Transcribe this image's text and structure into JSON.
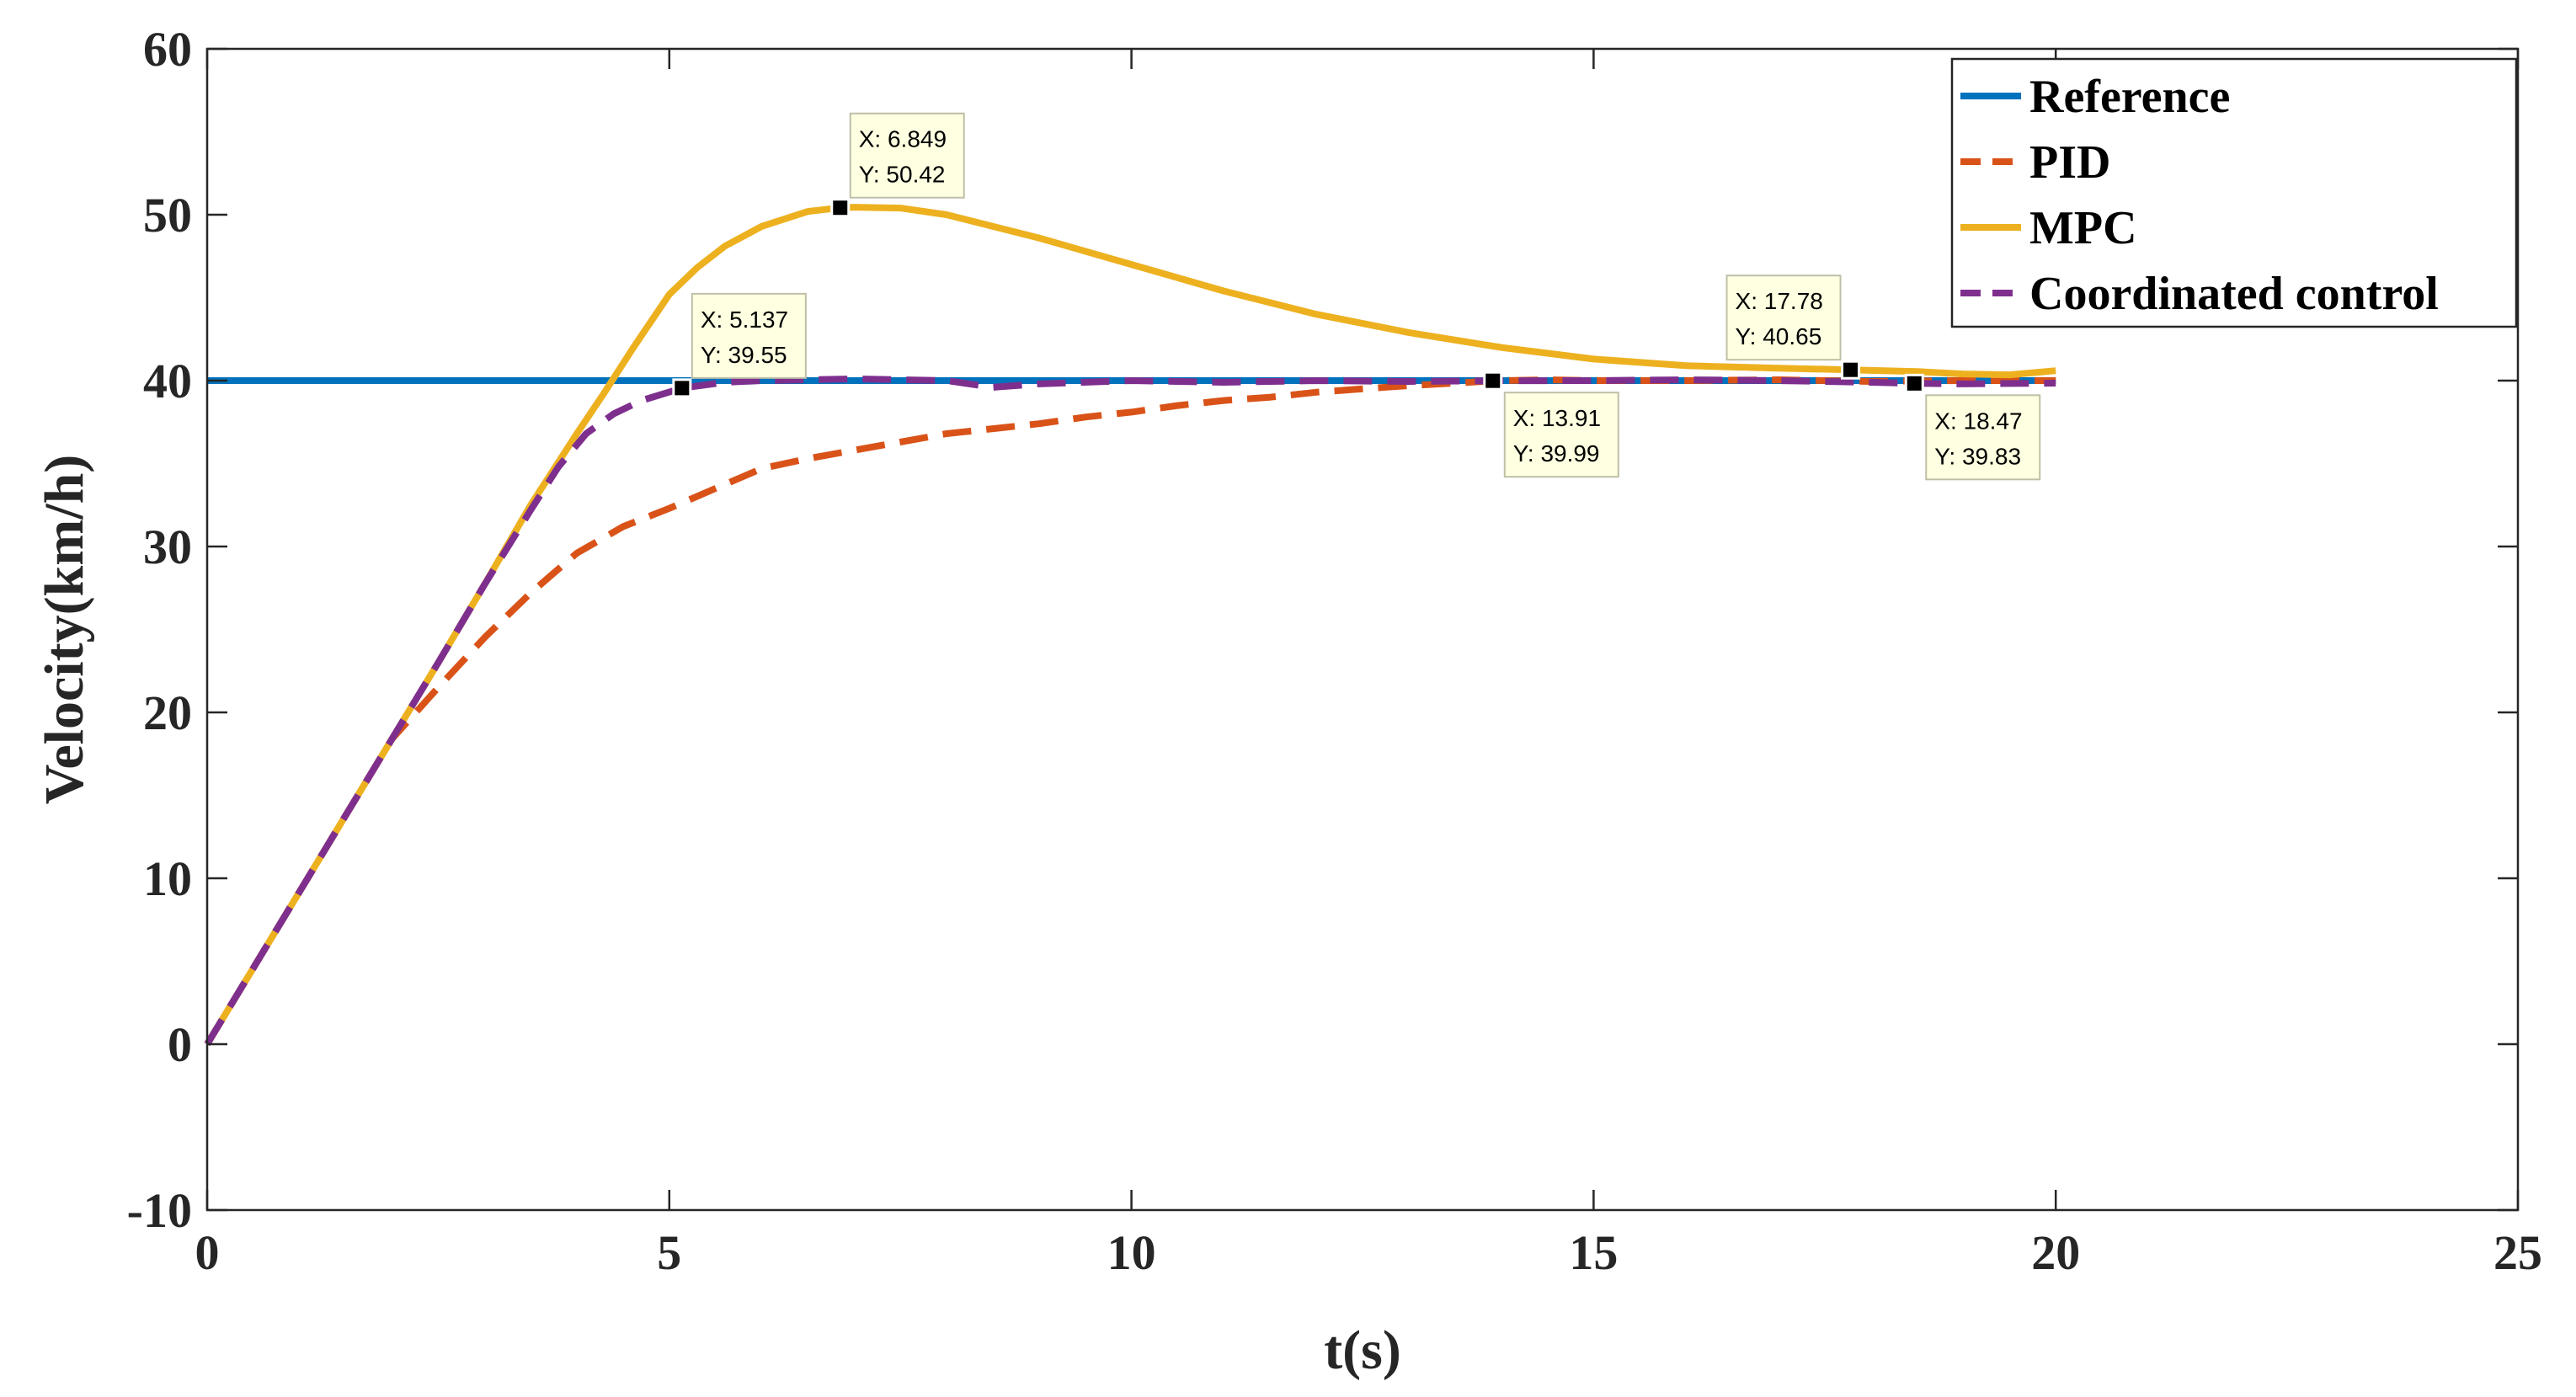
{
  "chart_data": {
    "type": "line",
    "title": "",
    "xlabel": "t(s)",
    "ylabel": "Velocity(km/h)",
    "xlim": [
      0,
      25
    ],
    "ylim": [
      -10,
      60
    ],
    "x_ticks": [
      0,
      5,
      10,
      15,
      20,
      25
    ],
    "y_ticks": [
      -10,
      0,
      10,
      20,
      30,
      40,
      50,
      60
    ],
    "x_tick_labels": [
      "0",
      "5",
      "10",
      "15",
      "20",
      "25"
    ],
    "y_tick_labels": [
      "-10",
      "0",
      "10",
      "20",
      "30",
      "40",
      "50",
      "60"
    ],
    "grid": false,
    "legend_position": "top-right",
    "series": [
      {
        "name": "Reference",
        "color": "#0072BD",
        "style": "solid",
        "x": [
          0,
          20
        ],
        "y": [
          40,
          40
        ]
      },
      {
        "name": "PID",
        "color": "#D95319",
        "style": "dashed",
        "x": [
          0,
          0.5,
          1.0,
          1.5,
          2.0,
          2.5,
          3.0,
          3.5,
          4.0,
          4.5,
          5.0,
          5.5,
          6.0,
          6.5,
          7.0,
          7.5,
          8.0,
          8.5,
          9.0,
          9.5,
          10.0,
          10.5,
          11.0,
          11.5,
          12.0,
          12.5,
          13.0,
          13.5,
          13.91,
          14.5,
          15.0,
          16.0,
          17.0,
          18.0,
          19.0,
          20.0
        ],
        "y": [
          0,
          4.6,
          9.2,
          13.8,
          18.4,
          21.5,
          24.5,
          27.2,
          29.6,
          31.2,
          32.3,
          33.5,
          34.7,
          35.3,
          35.8,
          36.3,
          36.8,
          37.1,
          37.4,
          37.8,
          38.1,
          38.5,
          38.8,
          39.0,
          39.3,
          39.5,
          39.7,
          39.85,
          39.99,
          40.05,
          40.0,
          40.0,
          40.05,
          39.95,
          40.0,
          40.0
        ]
      },
      {
        "name": "MPC",
        "color": "#EDB120",
        "style": "solid",
        "x": [
          0,
          0.5,
          1.0,
          1.5,
          2.0,
          2.5,
          3.0,
          3.5,
          4.0,
          4.3,
          4.6,
          5.0,
          5.3,
          5.6,
          6.0,
          6.5,
          6.849,
          7.0,
          7.5,
          8.0,
          9.0,
          10.0,
          11.0,
          12.0,
          13.0,
          14.0,
          15.0,
          16.0,
          17.0,
          17.78,
          18.5,
          19.0,
          19.5,
          20.0
        ],
        "y": [
          0,
          4.6,
          9.2,
          13.8,
          18.4,
          23.0,
          27.7,
          32.5,
          36.8,
          39.3,
          41.9,
          45.2,
          46.8,
          48.1,
          49.3,
          50.2,
          50.42,
          50.45,
          50.4,
          50.0,
          48.6,
          47.0,
          45.4,
          44.0,
          42.9,
          42.0,
          41.3,
          40.9,
          40.75,
          40.65,
          40.55,
          40.4,
          40.35,
          40.6
        ]
      },
      {
        "name": "Coordinated control",
        "color": "#7E2F8E",
        "style": "dashed",
        "x": [
          0,
          0.5,
          1.0,
          1.5,
          2.0,
          2.5,
          3.0,
          3.5,
          3.8,
          4.1,
          4.4,
          4.7,
          5.137,
          5.6,
          6.0,
          7.0,
          8.0,
          8.5,
          9.0,
          10.0,
          11.0,
          12.0,
          13.0,
          13.91,
          15.0,
          16.0,
          17.0,
          18.0,
          18.47,
          19.0,
          20.0
        ],
        "y": [
          0,
          4.6,
          9.2,
          13.8,
          18.4,
          23.0,
          27.7,
          32.2,
          34.8,
          36.8,
          38.0,
          38.8,
          39.55,
          39.9,
          40.0,
          40.1,
          40.0,
          39.6,
          39.8,
          40.0,
          39.9,
          40.0,
          39.95,
          39.99,
          40.0,
          40.05,
          40.0,
          39.9,
          39.83,
          39.8,
          39.85
        ]
      }
    ],
    "datatips": [
      {
        "x": 6.849,
        "y": 50.42,
        "label_x": "X: 6.849",
        "label_y": "Y: 50.42",
        "placement": "above-right"
      },
      {
        "x": 5.137,
        "y": 39.55,
        "label_x": "X: 5.137",
        "label_y": "Y: 39.55",
        "placement": "above-right"
      },
      {
        "x": 13.91,
        "y": 39.99,
        "label_x": "X: 13.91",
        "label_y": "Y: 39.99",
        "placement": "below-right"
      },
      {
        "x": 17.78,
        "y": 40.65,
        "label_x": "X: 17.78",
        "label_y": "Y: 40.65",
        "placement": "above-left"
      },
      {
        "x": 18.47,
        "y": 39.83,
        "label_x": "X: 18.47",
        "label_y": "Y: 39.83",
        "placement": "below-right"
      }
    ]
  }
}
